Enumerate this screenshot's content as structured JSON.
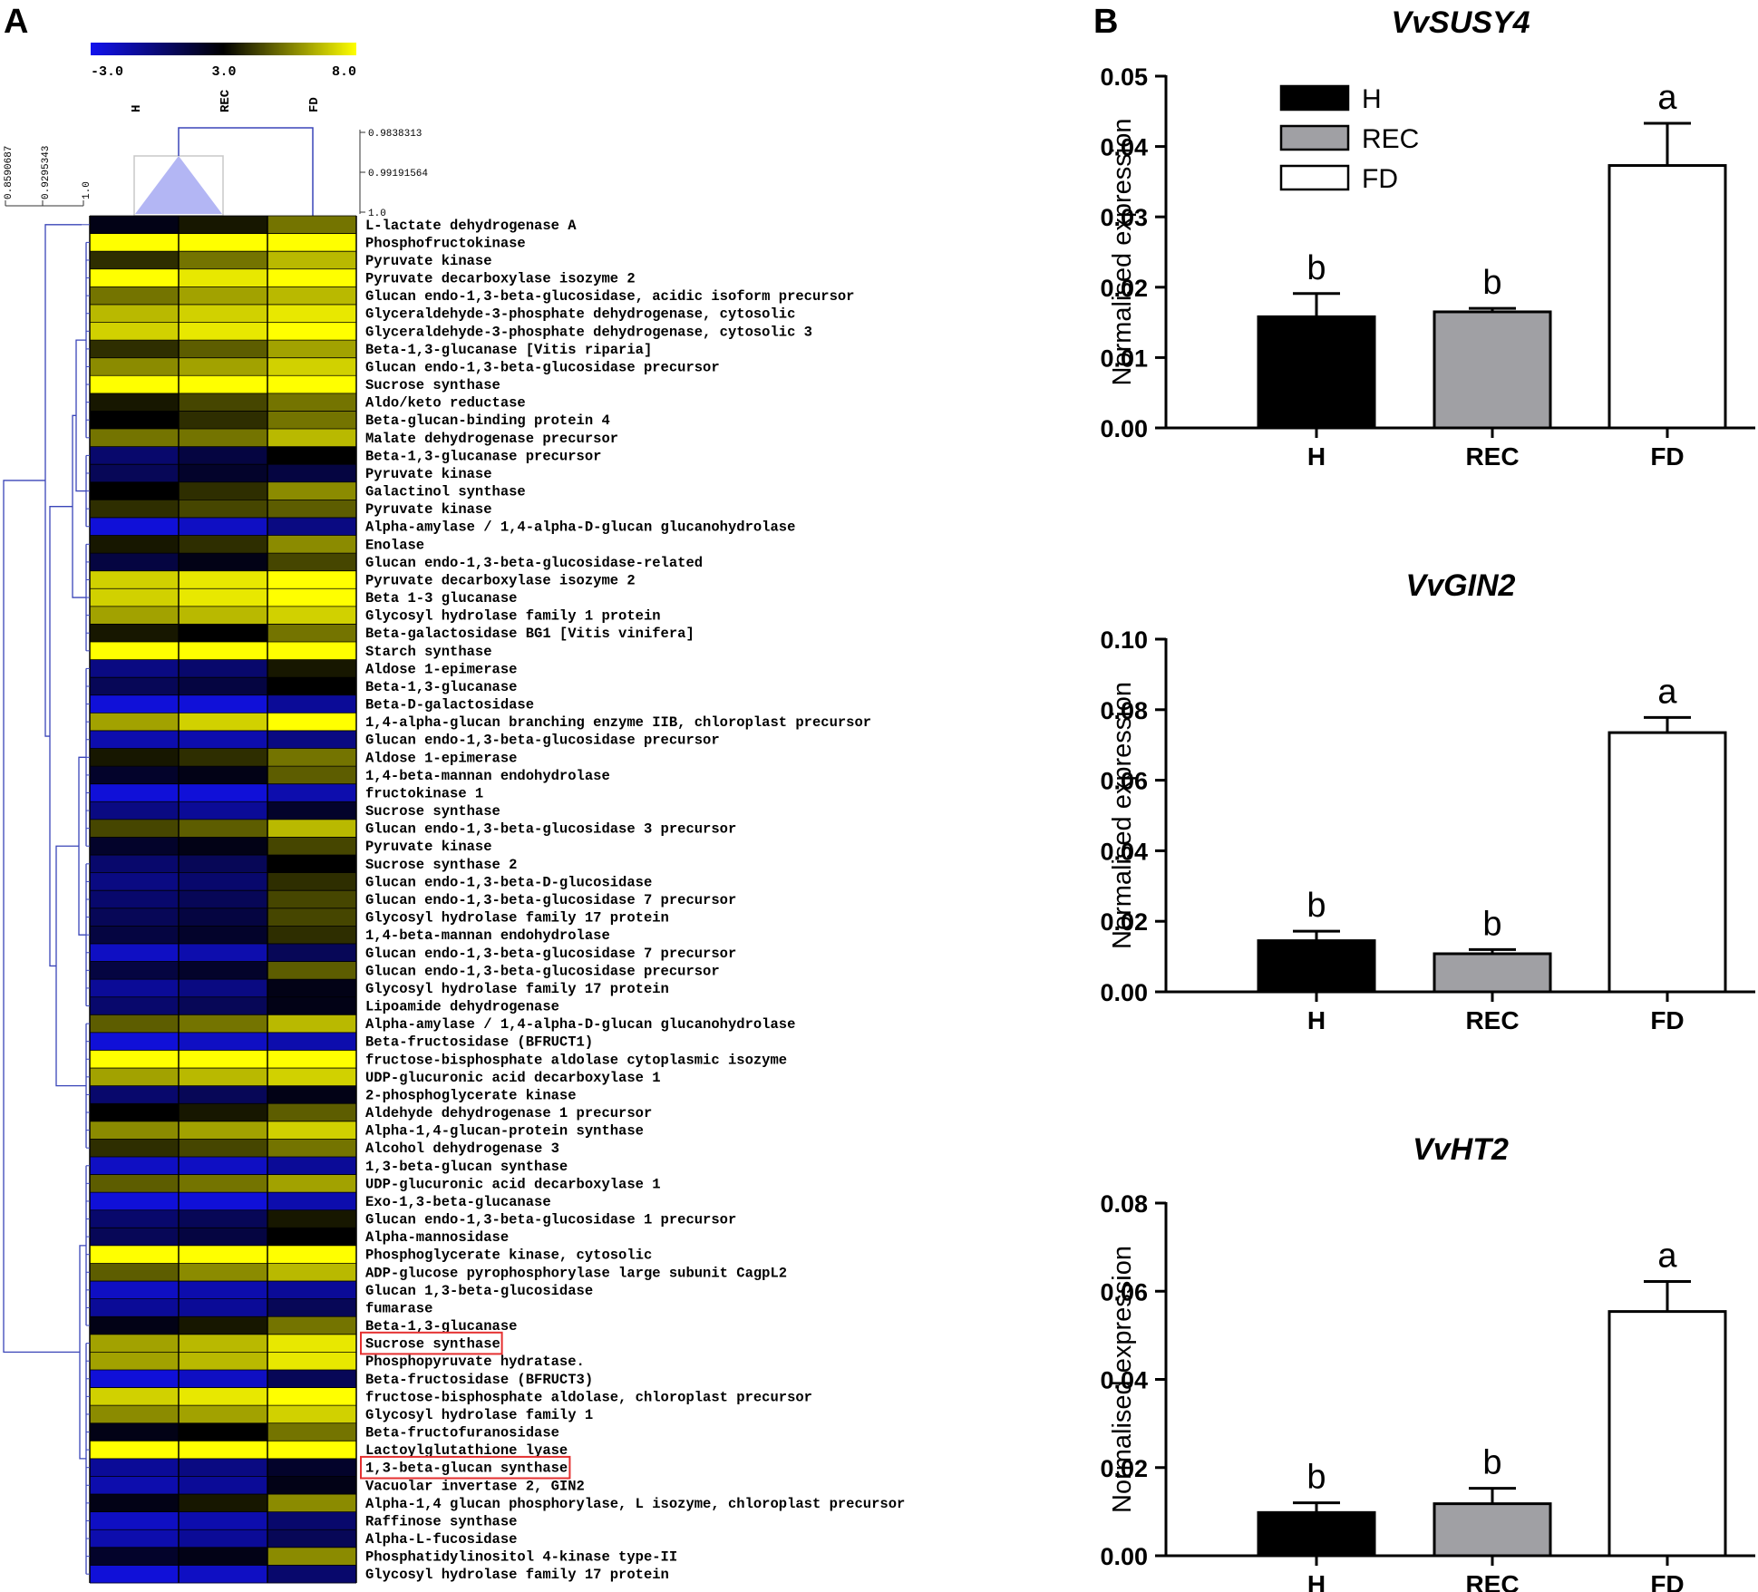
{
  "panels": {
    "a": "A",
    "b": "B"
  },
  "colors": {
    "low": "#1212ee",
    "mid": "#000000",
    "high": "#ffff00",
    "highlight": "#e53030",
    "dendro": "#3a45b8",
    "gray_bar": "#a0a0a4"
  },
  "heatmap": {
    "scale": {
      "min": "-3.0",
      "mid": "3.0",
      "max": "8.0"
    },
    "columns": [
      "H",
      "REC",
      "FD"
    ],
    "row_tree_ticks": [
      "0.8590687",
      "0.9295343",
      "1.0"
    ],
    "col_tree_ticks": [
      "0.9838313",
      "0.99191564",
      "1.0"
    ],
    "highlighted_rows": [
      63,
      70
    ]
  },
  "chart_data": [
    {
      "type": "heatmap",
      "columns": [
        "H",
        "REC",
        "FD"
      ],
      "value_range": [
        -3.0,
        8.0
      ],
      "rows": [
        {
          "label": "L-lactate dehydrogenase A",
          "values": [
            2,
            3,
            5
          ]
        },
        {
          "label": "Phosphofructokinase",
          "values": [
            8,
            8,
            8
          ]
        },
        {
          "label": "Pyruvate kinase",
          "values": [
            3.5,
            5,
            6.5
          ]
        },
        {
          "label": "Pyruvate decarboxylase isozyme 2",
          "values": [
            8,
            7.5,
            8
          ]
        },
        {
          "label": "Glucan endo-1,3-beta-glucosidase, acidic isoform precursor",
          "values": [
            5,
            6,
            6.5
          ]
        },
        {
          "label": "Glyceraldehyde-3-phosphate dehydrogenase, cytosolic",
          "values": [
            6.5,
            7,
            7.5
          ]
        },
        {
          "label": "Glyceraldehyde-3-phosphate dehydrogenase, cytosolic 3",
          "values": [
            7,
            7.5,
            8
          ]
        },
        {
          "label": "Beta-1,3-glucanase [Vitis riparia]",
          "values": [
            3.5,
            4.5,
            6
          ]
        },
        {
          "label": "Glucan endo-1,3-beta-glucosidase precursor",
          "values": [
            5.5,
            6,
            7
          ]
        },
        {
          "label": "Sucrose synthase",
          "values": [
            8,
            8,
            8
          ]
        },
        {
          "label": "Aldo/keto reductase",
          "values": [
            3,
            4,
            5
          ]
        },
        {
          "label": "Beta-glucan-binding protein 4",
          "values": [
            2.5,
            3.5,
            5
          ]
        },
        {
          "label": "Malate dehydrogenase precursor",
          "values": [
            5,
            5,
            6.5
          ]
        },
        {
          "label": "Beta-1,3-glucanase precursor",
          "values": [
            0,
            1,
            2.5
          ]
        },
        {
          "label": "Pyruvate kinase",
          "values": [
            0.5,
            1.5,
            1
          ]
        },
        {
          "label": "Galactinol synthase",
          "values": [
            2.5,
            3.5,
            5.5
          ]
        },
        {
          "label": "Pyruvate kinase",
          "values": [
            3.5,
            4,
            4.5
          ]
        },
        {
          "label": "Alpha-amylase / 1,4-alpha-D-glucan glucanohydrolase",
          "values": [
            -2.5,
            -2,
            -0.5
          ]
        },
        {
          "label": "Enolase",
          "values": [
            3,
            3.5,
            5.5
          ]
        },
        {
          "label": "Glucan endo-1,3-beta-glucosidase-related",
          "values": [
            1,
            2,
            4
          ]
        },
        {
          "label": "Pyruvate decarboxylase isozyme 2",
          "values": [
            7,
            7.5,
            8
          ]
        },
        {
          "label": "Beta 1-3 glucanase",
          "values": [
            7,
            7.5,
            8
          ]
        },
        {
          "label": "Glycosyl hydrolase family 1 protein",
          "values": [
            6,
            6.5,
            7
          ]
        },
        {
          "label": "Beta-galactosidase BG1 [Vitis vinifera]",
          "values": [
            3,
            2.5,
            5
          ]
        },
        {
          "label": "Starch synthase",
          "values": [
            8,
            8,
            8
          ]
        },
        {
          "label": "Aldose 1-epimerase",
          "values": [
            -0.5,
            0,
            3
          ]
        },
        {
          "label": "Beta-1,3-glucanase",
          "values": [
            0.5,
            1,
            2.5
          ]
        },
        {
          "label": "Beta-D-galactosidase",
          "values": [
            -2.5,
            -2.5,
            -1
          ]
        },
        {
          "label": "1,4-alpha-glucan branching enzyme IIB, chloroplast precursor",
          "values": [
            6,
            7,
            8
          ]
        },
        {
          "label": "Glucan endo-1,3-beta-glucosidase precursor",
          "values": [
            -1.5,
            -1.5,
            -0.5
          ]
        },
        {
          "label": "Aldose 1-epimerase",
          "values": [
            3,
            3.5,
            5
          ]
        },
        {
          "label": "1,4-beta-mannan endohydrolase",
          "values": [
            1.5,
            2,
            4.5
          ]
        },
        {
          "label": "fructokinase 1",
          "values": [
            -2.5,
            -2.5,
            -1.5
          ]
        },
        {
          "label": "Sucrose synthase",
          "values": [
            -0.5,
            -1,
            1.5
          ]
        },
        {
          "label": "Glucan endo-1,3-beta-glucosidase 3 precursor",
          "values": [
            4,
            4.5,
            6.5
          ]
        },
        {
          "label": "Pyruvate kinase",
          "values": [
            1.5,
            2,
            4
          ]
        },
        {
          "label": "Sucrose synthase 2",
          "values": [
            0,
            0.5,
            2.5
          ]
        },
        {
          "label": "Glucan endo-1,3-beta-D-glucosidase",
          "values": [
            -0.5,
            0,
            3.5
          ]
        },
        {
          "label": "Glucan endo-1,3-beta-glucosidase 7 precursor",
          "values": [
            0,
            0.5,
            4
          ]
        },
        {
          "label": "Glycosyl hydrolase family 17 protein",
          "values": [
            0.5,
            1,
            4
          ]
        },
        {
          "label": "1,4-beta-mannan endohydrolase",
          "values": [
            1,
            1.5,
            3.5
          ]
        },
        {
          "label": "Glucan endo-1,3-beta-glucosidase 7 precursor",
          "values": [
            -2,
            -1.5,
            0.5
          ]
        },
        {
          "label": "Glucan endo-1,3-beta-glucosidase precursor",
          "values": [
            1,
            1.5,
            4.5
          ]
        },
        {
          "label": "Glycosyl hydrolase family 17 protein",
          "values": [
            -1,
            -0.5,
            2
          ]
        },
        {
          "label": "Lipoamide dehydrogenase",
          "values": [
            0,
            0.5,
            2
          ]
        },
        {
          "label": "Alpha-amylase / 1,4-alpha-D-glucan glucanohydrolase",
          "values": [
            4.5,
            5,
            6.5
          ]
        },
        {
          "label": "Beta-fructosidase (BFRUCT1)",
          "values": [
            -2.5,
            -2,
            -1.5
          ]
        },
        {
          "label": "fructose-bisphosphate aldolase cytoplasmic isozyme",
          "values": [
            8,
            8,
            8
          ]
        },
        {
          "label": "UDP-glucuronic acid decarboxylase 1",
          "values": [
            6,
            6.5,
            7
          ]
        },
        {
          "label": "2-phosphoglycerate kinase",
          "values": [
            0,
            0.5,
            2
          ]
        },
        {
          "label": "Aldehyde dehydrogenase 1 precursor",
          "values": [
            2.5,
            3,
            4.5
          ]
        },
        {
          "label": "Alpha-1,4-glucan-protein synthase",
          "values": [
            5.5,
            6,
            7
          ]
        },
        {
          "label": "Alcohol dehydrogenase 3",
          "values": [
            3.5,
            4,
            5
          ]
        },
        {
          "label": "1,3-beta-glucan synthase",
          "values": [
            -2,
            -2,
            -1
          ]
        },
        {
          "label": "UDP-glucuronic acid decarboxylase 1",
          "values": [
            4.5,
            5,
            6
          ]
        },
        {
          "label": "Exo-1,3-beta-glucanase",
          "values": [
            -2.5,
            -2.5,
            -1.5
          ]
        },
        {
          "label": "Glucan endo-1,3-beta-glucosidase 1 precursor",
          "values": [
            0,
            0.5,
            3
          ]
        },
        {
          "label": "Alpha-mannosidase",
          "values": [
            0.5,
            1,
            2.5
          ]
        },
        {
          "label": "Phosphoglycerate kinase, cytosolic",
          "values": [
            8,
            8,
            8
          ]
        },
        {
          "label": "ADP-glucose pyrophosphorylase large subunit CagpL2",
          "values": [
            4.5,
            5.5,
            6.5
          ]
        },
        {
          "label": "Glucan 1,3-beta-glucosidase",
          "values": [
            -2,
            -1.5,
            -1
          ]
        },
        {
          "label": "fumarase",
          "values": [
            -1,
            -1,
            0.5
          ]
        },
        {
          "label": "Beta-1,3-glucanase",
          "values": [
            2,
            3,
            5
          ]
        },
        {
          "label": "Sucrose synthase",
          "values": [
            6,
            6.5,
            7.5
          ]
        },
        {
          "label": "Phosphopyruvate hydratase.",
          "values": [
            6,
            6.5,
            7.5
          ]
        },
        {
          "label": "Beta-fructosidase (BFRUCT3)",
          "values": [
            -2.5,
            -2,
            0.5
          ]
        },
        {
          "label": "fructose-bisphosphate aldolase, chloroplast precursor",
          "values": [
            7,
            7.5,
            8
          ]
        },
        {
          "label": "Glycosyl hydrolase family 1",
          "values": [
            5.5,
            6,
            7
          ]
        },
        {
          "label": "Beta-fructofuranosidase",
          "values": [
            2,
            2.5,
            5
          ]
        },
        {
          "label": "Lactoylglutathione lyase",
          "values": [
            8,
            8,
            8
          ]
        },
        {
          "label": "1,3-beta-glucan synthase",
          "values": [
            -1,
            -0.5,
            1.5
          ]
        },
        {
          "label": "Vacuolar invertase 2, GIN2",
          "values": [
            -1.5,
            -1,
            2
          ]
        },
        {
          "label": "Alpha-1,4 glucan phosphorylase, L isozyme, chloroplast precursor",
          "values": [
            2,
            3,
            5.5
          ]
        },
        {
          "label": "Raffinose synthase",
          "values": [
            -2,
            -1.5,
            0
          ]
        },
        {
          "label": "Alpha-L-fucosidase",
          "values": [
            -1.5,
            -1,
            0.5
          ]
        },
        {
          "label": "Phosphatidylinositol 4-kinase type-II",
          "values": [
            1.5,
            2,
            5.5
          ]
        },
        {
          "label": "Glycosyl hydrolase family 17 protein",
          "values": [
            -2.5,
            -2,
            0
          ]
        }
      ]
    },
    {
      "type": "bar",
      "title": "VvSUSY4",
      "ylabel": "Normalised expression",
      "ylim": [
        0,
        0.05
      ],
      "yticks": [
        "0.00",
        "0.01",
        "0.02",
        "0.03",
        "0.04",
        "0.05"
      ],
      "categories": [
        "H",
        "REC",
        "FD"
      ],
      "values": [
        0.0158,
        0.0165,
        0.0373
      ],
      "errors": [
        0.0033,
        0.0005,
        0.006
      ],
      "significance": [
        "b",
        "b",
        "a"
      ],
      "legend": [
        "H",
        "REC",
        "FD"
      ],
      "legend_position": "top-left"
    },
    {
      "type": "bar",
      "title": "VvGIN2",
      "ylabel": "Normalised expression",
      "ylim": [
        0,
        0.1
      ],
      "yticks": [
        "0.00",
        "0.02",
        "0.04",
        "0.06",
        "0.08",
        "0.10"
      ],
      "categories": [
        "H",
        "REC",
        "FD"
      ],
      "values": [
        0.0145,
        0.0108,
        0.0735
      ],
      "errors": [
        0.0027,
        0.0012,
        0.0043
      ],
      "significance": [
        "b",
        "b",
        "a"
      ]
    },
    {
      "type": "bar",
      "title": "VvHT2",
      "ylabel": "Normalised expression",
      "ylim": [
        0,
        0.08
      ],
      "yticks": [
        "0.00",
        "0.02",
        "0.04",
        "0.06",
        "0.08"
      ],
      "categories": [
        "H",
        "REC",
        "FD"
      ],
      "values": [
        0.0098,
        0.0118,
        0.0554
      ],
      "errors": [
        0.0022,
        0.0035,
        0.0068
      ],
      "significance": [
        "b",
        "b",
        "a"
      ]
    }
  ]
}
